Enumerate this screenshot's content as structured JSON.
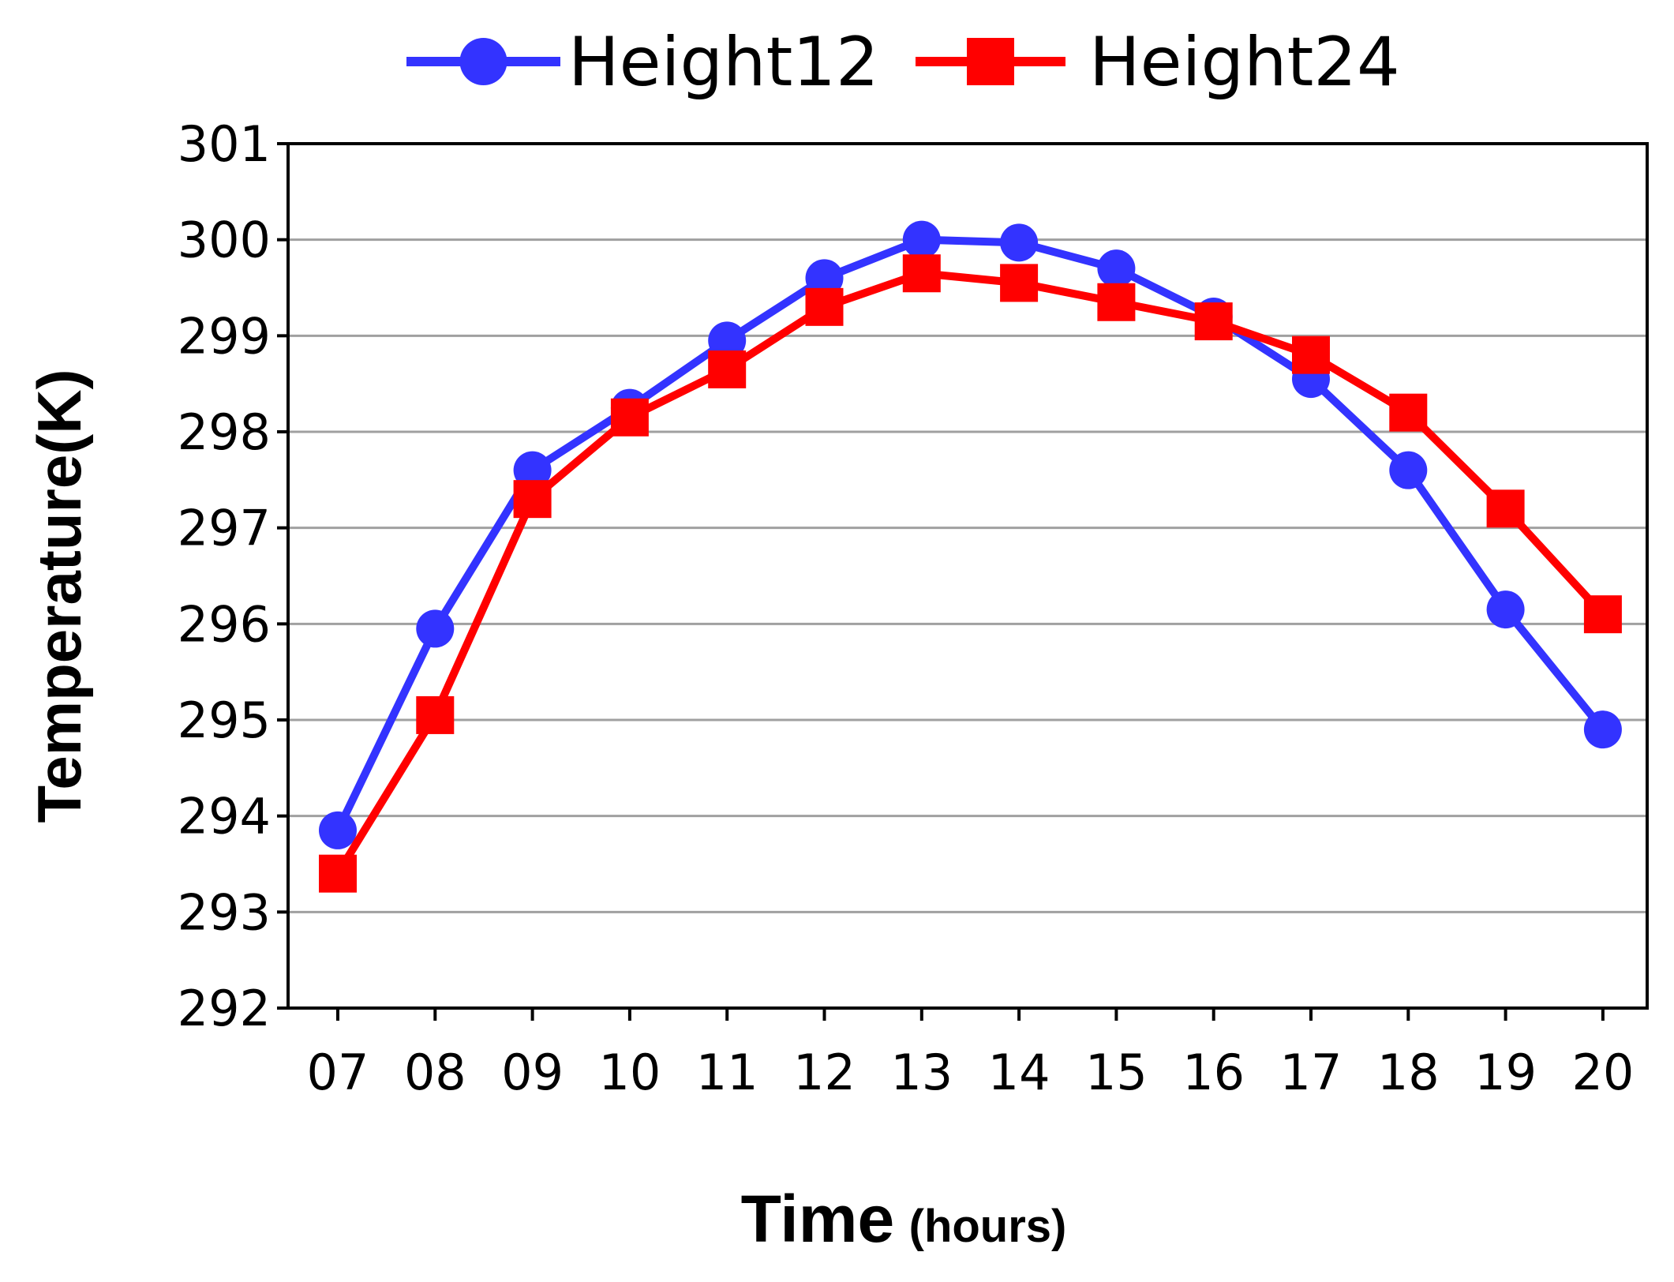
{
  "chart_data": {
    "type": "line",
    "xlabel": "Time",
    "xlabel_unit": "(hours)",
    "ylabel": "Temperature(K)",
    "categories": [
      "07",
      "08",
      "09",
      "10",
      "11",
      "12",
      "13",
      "14",
      "15",
      "16",
      "17",
      "18",
      "19",
      "20"
    ],
    "yticks": [
      "292",
      "293",
      "294",
      "295",
      "296",
      "297",
      "298",
      "299",
      "300",
      "301"
    ],
    "ylim": [
      292,
      301
    ],
    "grid": true,
    "legend": "top",
    "series": [
      {
        "name": "Height12",
        "color": "#3333ff",
        "marker": "circle",
        "values": [
          293.85,
          295.95,
          297.6,
          298.25,
          298.95,
          299.6,
          300.0,
          299.97,
          299.7,
          299.2,
          298.55,
          297.6,
          296.15,
          294.9
        ]
      },
      {
        "name": "Height24",
        "color": "#ff0000",
        "marker": "square",
        "values": [
          293.4,
          295.05,
          297.3,
          298.15,
          298.65,
          299.3,
          299.65,
          299.55,
          299.35,
          299.15,
          298.8,
          298.2,
          297.2,
          296.1
        ]
      }
    ]
  }
}
